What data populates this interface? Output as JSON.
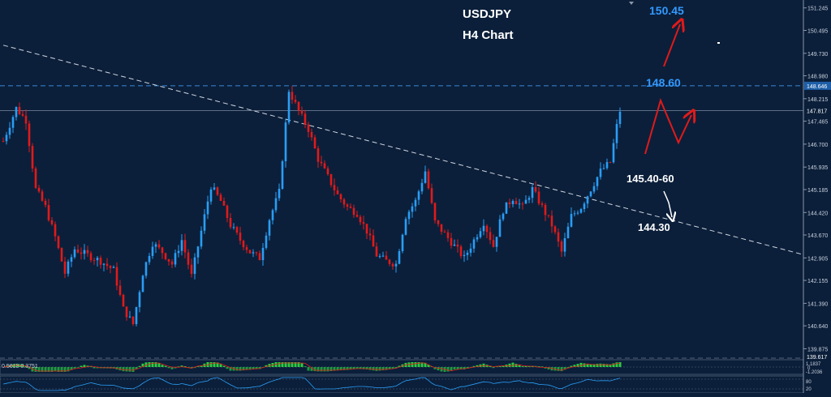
{
  "title": "USDJPY",
  "subtitle": "H4 Chart",
  "colors": {
    "background": "#0b1f3a",
    "bull_candle": "#2a9df4",
    "bear_candle": "#e01a1a",
    "projection_up": "#e01a1a",
    "projection_down": "#ffffff",
    "level_line": "#3b86d6",
    "trendline": "#d0d6e0",
    "label_blue": "#3399ff",
    "label_white": "#ffffff",
    "osc_green": "#2ecc40",
    "osc_red": "#e01a1a"
  },
  "annotations": {
    "target_high": "150.45",
    "resistance": "148.60",
    "breakout_zone": "145.40-60",
    "target_low": "144.30"
  },
  "price_axis": {
    "ticks": [
      "151.245",
      "150.495",
      "149.730",
      "148.980",
      "148.215",
      "147.465",
      "146.700",
      "145.935",
      "145.185",
      "144.420",
      "143.670",
      "142.905",
      "142.155",
      "141.390",
      "140.640",
      "139.875"
    ],
    "tag_resistance": "148.646",
    "tag_current": "147.817",
    "tag_bottom": "139.617"
  },
  "indicators": {
    "macd_label": "0.5613 0.3751",
    "macd_scale_top": "1.1837",
    "macd_scale_mid": "0",
    "macd_scale_bottom": "-1.2036",
    "rsi_scale_top": "80",
    "rsi_scale_bottom": "20"
  },
  "chart_data": {
    "type": "candlestick",
    "title": "USDJPY",
    "subtitle": "H4 Chart",
    "ylim": [
      139.617,
      151.4
    ],
    "levels": {
      "resistance": 148.646,
      "current": 147.817
    },
    "trendline": {
      "from": [
        0,
        150.0
      ],
      "to": [
        187,
        144.7
      ]
    },
    "projections": {
      "up_arrow": [
        "146.2 → 150.45"
      ],
      "zigzag": [
        146.3,
        148.4,
        147.1,
        148.0
      ],
      "down_arrow": [
        "145.6 → 144.4"
      ]
    },
    "close_path": [
      [
        0,
        146.8
      ],
      [
        4,
        147.9
      ],
      [
        7,
        147.5
      ],
      [
        10,
        145.2
      ],
      [
        13,
        144.6
      ],
      [
        16,
        143.6
      ],
      [
        19,
        142.4
      ],
      [
        22,
        143.2
      ],
      [
        26,
        143.0
      ],
      [
        30,
        142.8
      ],
      [
        34,
        142.5
      ],
      [
        37,
        141.2
      ],
      [
        40,
        140.7
      ],
      [
        43,
        142.4
      ],
      [
        46,
        143.4
      ],
      [
        49,
        143.1
      ],
      [
        52,
        142.7
      ],
      [
        55,
        143.5
      ],
      [
        58,
        142.3
      ],
      [
        61,
        143.8
      ],
      [
        64,
        145.3
      ],
      [
        67,
        144.8
      ],
      [
        70,
        144.0
      ],
      [
        73,
        143.5
      ],
      [
        76,
        143.1
      ],
      [
        79,
        142.9
      ],
      [
        82,
        144.2
      ],
      [
        85,
        145.1
      ],
      [
        88,
        148.5
      ],
      [
        91,
        147.8
      ],
      [
        94,
        147.2
      ],
      [
        97,
        146.2
      ],
      [
        100,
        145.6
      ],
      [
        103,
        145.0
      ],
      [
        106,
        144.6
      ],
      [
        109,
        144.4
      ],
      [
        112,
        143.8
      ],
      [
        115,
        143.0
      ],
      [
        118,
        142.8
      ],
      [
        121,
        142.7
      ],
      [
        124,
        144.3
      ],
      [
        127,
        144.8
      ],
      [
        130,
        145.8
      ],
      [
        133,
        144.1
      ],
      [
        136,
        143.7
      ],
      [
        139,
        143.3
      ],
      [
        142,
        142.9
      ],
      [
        145,
        143.5
      ],
      [
        148,
        144.1
      ],
      [
        151,
        143.3
      ],
      [
        154,
        144.5
      ],
      [
        157,
        144.9
      ],
      [
        160,
        144.6
      ],
      [
        163,
        145.2
      ],
      [
        166,
        144.6
      ],
      [
        169,
        144.0
      ],
      [
        172,
        143.1
      ],
      [
        175,
        144.3
      ],
      [
        178,
        144.6
      ],
      [
        181,
        145.2
      ],
      [
        184,
        145.8
      ],
      [
        187,
        146.1
      ],
      [
        189,
        147.3
      ],
      [
        190,
        147.817
      ]
    ]
  }
}
